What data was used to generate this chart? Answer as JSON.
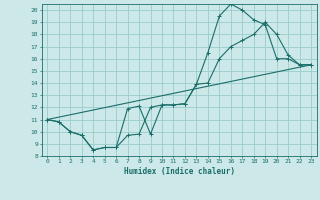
{
  "xlabel": "Humidex (Indice chaleur)",
  "bg_color": "#cce8e8",
  "grid_color": "#99cccc",
  "line_color": "#1a6e6a",
  "xlim": [
    -0.5,
    23.5
  ],
  "ylim": [
    8,
    20.5
  ],
  "xticks": [
    0,
    1,
    2,
    3,
    4,
    5,
    6,
    7,
    8,
    9,
    10,
    11,
    12,
    13,
    14,
    15,
    16,
    17,
    18,
    19,
    20,
    21,
    22,
    23
  ],
  "yticks": [
    8,
    9,
    10,
    11,
    12,
    13,
    14,
    15,
    16,
    17,
    18,
    19,
    20
  ],
  "line1_x": [
    0,
    1,
    2,
    3,
    4,
    5,
    6,
    7,
    8,
    9,
    10,
    11,
    12,
    13,
    14,
    15,
    16,
    17,
    18,
    19,
    20,
    21,
    22,
    23
  ],
  "line1_y": [
    11.0,
    10.8,
    10.0,
    9.7,
    8.5,
    8.7,
    8.7,
    9.7,
    9.8,
    12.0,
    12.2,
    12.2,
    12.3,
    13.9,
    14.0,
    16.0,
    17.0,
    17.5,
    18.0,
    19.0,
    18.0,
    16.3,
    15.5,
    15.5
  ],
  "line2_x": [
    0,
    1,
    2,
    3,
    4,
    5,
    6,
    7,
    8,
    9,
    10,
    11,
    12,
    13,
    14,
    15,
    16,
    17,
    18,
    19,
    20,
    21,
    22,
    23
  ],
  "line2_y": [
    11.0,
    10.8,
    10.0,
    9.7,
    8.5,
    8.7,
    8.7,
    11.9,
    12.1,
    9.8,
    12.2,
    12.2,
    12.3,
    13.9,
    16.5,
    19.5,
    20.5,
    20.0,
    19.2,
    18.8,
    16.0,
    16.0,
    15.5,
    15.5
  ],
  "line3_x": [
    0,
    23
  ],
  "line3_y": [
    11.0,
    15.5
  ]
}
